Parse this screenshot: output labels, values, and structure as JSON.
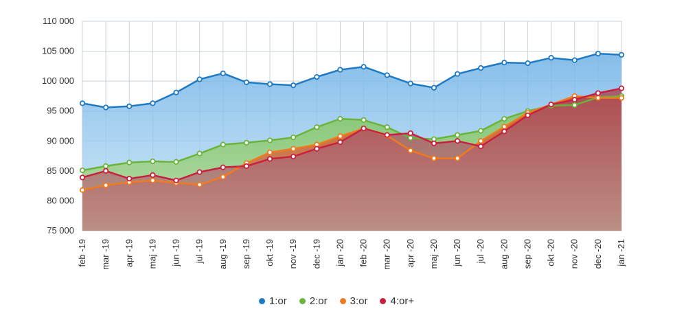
{
  "chart_data": {
    "type": "area",
    "categories": [
      "feb -19",
      "mar -19",
      "apr -19",
      "maj -19",
      "jun -19",
      "jul -19",
      "aug -19",
      "sep -19",
      "okt -19",
      "nov -19",
      "dec -19",
      "jan -20",
      "feb -20",
      "mar -20",
      "apr -20",
      "maj -20",
      "jun -20",
      "jul -20",
      "aug -20",
      "sep -20",
      "okt -20",
      "nov -20",
      "dec -20",
      "jan -21"
    ],
    "ylim": [
      75000,
      110000
    ],
    "yticks": [
      75000,
      80000,
      85000,
      90000,
      95000,
      100000,
      105000,
      110000
    ],
    "ytick_labels": [
      "75 000",
      "80 000",
      "85 000",
      "90 000",
      "95 000",
      "100 000",
      "105 000",
      "110 000"
    ],
    "grid": true,
    "legend_position": "bottom",
    "series": [
      {
        "name": "1:or",
        "color": "#1f7ac4",
        "values": [
          96300,
          95600,
          95800,
          96300,
          98100,
          100300,
          101300,
          99800,
          99500,
          99300,
          100700,
          101900,
          102400,
          101000,
          99600,
          98900,
          101200,
          102200,
          103100,
          103000,
          103900,
          103500,
          104600,
          104400
        ]
      },
      {
        "name": "2:or",
        "color": "#69b43a",
        "values": [
          85100,
          85800,
          86400,
          86600,
          86500,
          87900,
          89400,
          89700,
          90100,
          90600,
          92300,
          93700,
          93500,
          92300,
          90500,
          90300,
          91000,
          91700,
          93700,
          95000,
          95900,
          96000,
          97300,
          97500
        ]
      },
      {
        "name": "3:or",
        "color": "#f07b1e",
        "values": [
          81800,
          82600,
          83100,
          83400,
          83000,
          82700,
          84000,
          86300,
          88100,
          88700,
          89400,
          90800,
          92100,
          90900,
          88400,
          87100,
          87100,
          90000,
          92400,
          94700,
          96100,
          97500,
          97200,
          97200
        ]
      },
      {
        "name": "4:or+",
        "color": "#c8203f",
        "values": [
          83900,
          85000,
          83700,
          84300,
          83400,
          84800,
          85600,
          85800,
          87000,
          87400,
          88700,
          89800,
          92100,
          91000,
          91300,
          89600,
          90000,
          89100,
          91600,
          94300,
          96100,
          96900,
          98000,
          98800
        ]
      }
    ]
  }
}
